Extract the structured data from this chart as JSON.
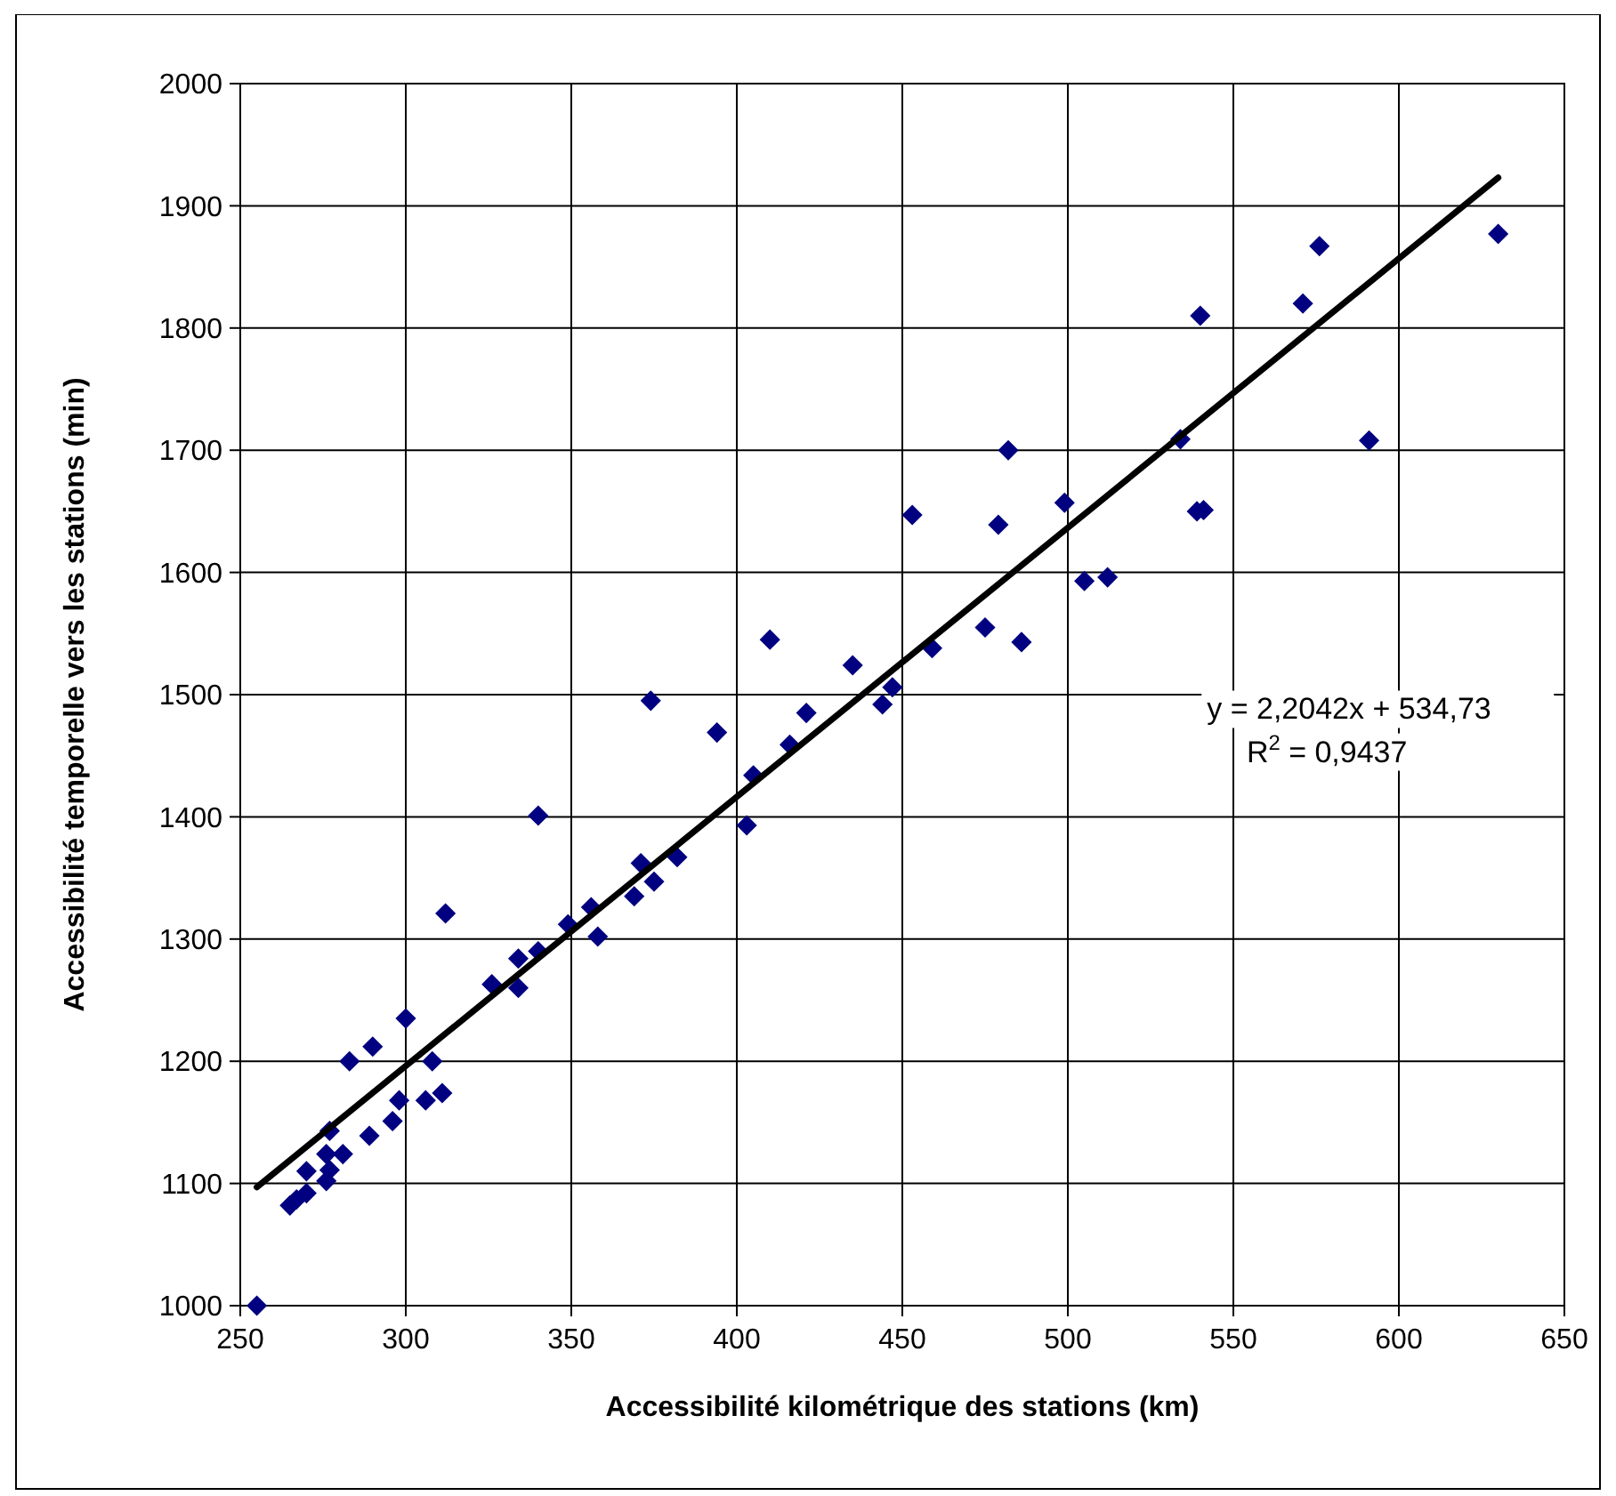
{
  "chart_data": {
    "type": "scatter",
    "xlabel": "Accessibilité kilométrique des stations (km)",
    "ylabel": "Accessibilité temporelle vers les stations (min)",
    "xlim": [
      250,
      650
    ],
    "xticks": [
      250,
      300,
      350,
      400,
      450,
      500,
      550,
      600,
      650
    ],
    "ylim": [
      1000,
      2000
    ],
    "yticks": [
      1000,
      1100,
      1200,
      1300,
      1400,
      1500,
      1600,
      1700,
      1800,
      1900,
      2000
    ],
    "grid": true,
    "series": [
      {
        "marker": "diamond",
        "color": "#000080",
        "x": [
          255,
          265,
          267,
          270,
          270,
          276,
          277,
          276,
          277,
          281,
          289,
          283,
          290,
          296,
          298,
          300,
          306,
          308,
          311,
          312,
          326,
          334,
          334,
          340,
          340,
          349,
          356,
          358,
          369,
          371,
          375,
          382,
          374,
          394,
          403,
          405,
          416,
          421,
          435,
          410,
          444,
          447,
          459,
          453,
          475,
          486,
          479,
          499,
          482,
          505,
          512,
          534,
          539,
          541,
          540,
          571,
          576,
          591,
          630
        ],
        "values": [
          1000,
          1082,
          1087,
          1092,
          1110,
          1102,
          1111,
          1124,
          1143,
          1124,
          1139,
          1200,
          1212,
          1151,
          1168,
          1235,
          1168,
          1200,
          1174,
          1321,
          1263,
          1284,
          1260,
          1290,
          1401,
          1312,
          1326,
          1302,
          1335,
          1362,
          1347,
          1367,
          1495,
          1469,
          1393,
          1434,
          1459,
          1485,
          1524,
          1545,
          1492,
          1506,
          1538,
          1647,
          1555,
          1543,
          1639,
          1657,
          1700,
          1593,
          1596,
          1709,
          1650,
          1651,
          1810,
          1820,
          1867,
          1708,
          1877
        ]
      },
      {
        "type": "line",
        "marker": "none",
        "color": "#000000",
        "x": [
          255,
          630
        ],
        "values": [
          1097,
          1923
        ]
      }
    ],
    "annotations": [
      "y = 2,2042x + 534,73",
      "R$^{2}$ = 0,9437"
    ]
  }
}
